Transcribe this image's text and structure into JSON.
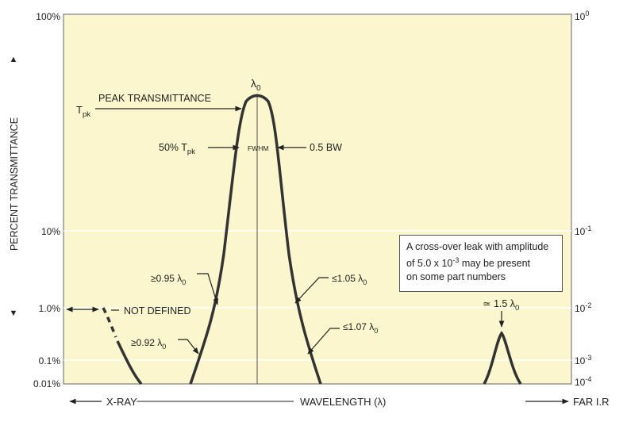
{
  "colors": {
    "plot_bg": "#fbf6cd",
    "curve": "#333333",
    "text": "#222222",
    "gridline": "#ffffff"
  },
  "axes": {
    "left_ylabel": "PERCENT TRANSMITTANCE",
    "left_ticks": [
      "100%",
      "10%",
      "1.0%",
      "0.1%",
      "0.01%"
    ],
    "right_ticks": [
      {
        "base": "10",
        "exp": "0"
      },
      {
        "base": "10",
        "exp": "-1"
      },
      {
        "base": "10",
        "exp": "-2"
      },
      {
        "base": "10",
        "exp": "-3"
      },
      {
        "base": "10",
        "exp": "-4"
      }
    ]
  },
  "bottom": {
    "left": "X-RAY",
    "center": "WAVELENGTH (λ)",
    "right": "FAR I.R"
  },
  "labels": {
    "lambda0": "λ",
    "lambda0_sub": "0",
    "peak": "PEAK TRANSMITTANCE",
    "tpk": "T",
    "tpk_sub": "pk",
    "half": "50% T",
    "half_sub": "pk",
    "fwhm": "FWHM",
    "bw": "0.5 BW",
    "ge095": "≥0.95 λ",
    "le105": "≤1.05 λ",
    "ge092": "≥0.92 λ",
    "le107": "≤1.07 λ",
    "sub0": "0",
    "not_defined": "NOT DEFINED",
    "leak": "≃ 1.5 λ"
  },
  "note": {
    "line1": "A cross-over leak with amplitude",
    "line2a": "of 5.0 x 10",
    "line2exp": "-3",
    "line2b": " may be present",
    "line3": "on some part numbers"
  }
}
